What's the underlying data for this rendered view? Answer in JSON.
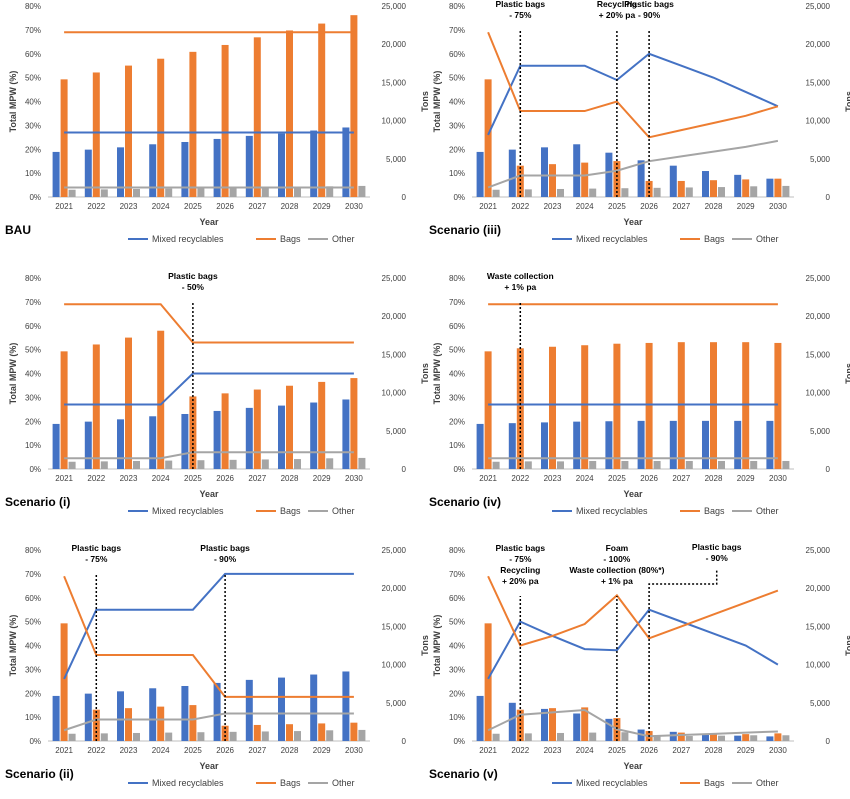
{
  "colors": {
    "mixed": "#4472C4",
    "bags": "#ED7D31",
    "other": "#A5A5A5",
    "axis": "#BFBFBF",
    "text": "#404040",
    "ann": "#000000"
  },
  "chart_data": [
    {
      "type": "bar+line",
      "panel_label": "BAU",
      "categories": [
        "2021",
        "2022",
        "2023",
        "2024",
        "2025",
        "2026",
        "2027",
        "2028",
        "2029",
        "2030"
      ],
      "xlabel": "Year",
      "ylabel_left": "Total MPW (%)",
      "ylabel_right": "Tons",
      "ylim_left": [
        0,
        80
      ],
      "ylim_right": [
        0,
        25000
      ],
      "yticks_left": [
        "0%",
        "10%",
        "20%",
        "30%",
        "40%",
        "50%",
        "60%",
        "70%",
        "80%"
      ],
      "yticks_right": [
        "0",
        "5,000",
        "10,000",
        "15,000",
        "20,000",
        "25,000"
      ],
      "legend": [
        "Mixed recyclables",
        "Bags",
        "Other"
      ],
      "bars": [
        {
          "name": "Mixed recyclables",
          "values": [
            5900,
            6200,
            6500,
            6900,
            7200,
            7600,
            8000,
            8300,
            8700,
            9100
          ]
        },
        {
          "name": "Bags",
          "values": [
            15400,
            16300,
            17200,
            18100,
            19000,
            19900,
            20900,
            21800,
            22700,
            23800
          ]
        },
        {
          "name": "Other",
          "values": [
            950,
            1000,
            1050,
            1100,
            1150,
            1200,
            1250,
            1300,
            1400,
            1450
          ]
        }
      ],
      "lines": [
        {
          "name": "Mixed recyclables",
          "values": [
            27,
            27,
            27,
            27,
            27,
            27,
            27,
            27,
            27,
            27
          ]
        },
        {
          "name": "Bags",
          "values": [
            69,
            69,
            69,
            69,
            69,
            69,
            69,
            69,
            69,
            69
          ]
        },
        {
          "name": "Other",
          "values": [
            4,
            4,
            4,
            4,
            4,
            4,
            4,
            4,
            4,
            4
          ]
        }
      ],
      "annotations": []
    },
    {
      "type": "bar+line",
      "panel_label": "Scenario (iii)",
      "categories": [
        "2021",
        "2022",
        "2023",
        "2024",
        "2025",
        "2026",
        "2027",
        "2028",
        "2029",
        "2030"
      ],
      "xlabel": "Year",
      "ylabel_left": "Total MPW (%)",
      "ylabel_right": "Tons",
      "ylim_left": [
        0,
        80
      ],
      "ylim_right": [
        0,
        25000
      ],
      "yticks_left": [
        "0%",
        "10%",
        "20%",
        "30%",
        "40%",
        "50%",
        "60%",
        "70%",
        "80%"
      ],
      "yticks_right": [
        "0",
        "5,000",
        "10,000",
        "15,000",
        "20,000",
        "25,000"
      ],
      "legend": [
        "Mixed recyclables",
        "Bags",
        "Other"
      ],
      "bars": [
        {
          "name": "Mixed recyclables",
          "values": [
            5900,
            6200,
            6500,
            6900,
            5800,
            4800,
            4100,
            3400,
            2900,
            2400
          ]
        },
        {
          "name": "Bags",
          "values": [
            15400,
            4100,
            4300,
            4500,
            4700,
            2100,
            2100,
            2200,
            2300,
            2400
          ]
        },
        {
          "name": "Other",
          "values": [
            950,
            1000,
            1050,
            1100,
            1150,
            1200,
            1250,
            1300,
            1400,
            1450
          ]
        }
      ],
      "lines": [
        {
          "name": "Mixed recyclables",
          "values": [
            26,
            55,
            55,
            55,
            49,
            60,
            55,
            50,
            44,
            38
          ]
        },
        {
          "name": "Bags",
          "values": [
            69,
            36,
            36,
            36,
            40,
            25,
            28,
            31,
            34,
            38
          ]
        },
        {
          "name": "Other",
          "values": [
            4,
            9,
            9,
            9,
            11,
            15,
            17,
            19,
            21,
            23.5
          ]
        }
      ],
      "annotations": [
        {
          "year": "2022",
          "lines": [
            "Plastic bags",
            "- 75%"
          ]
        },
        {
          "year": "2025",
          "lines": [
            "Recycling",
            "+ 20% pa"
          ]
        },
        {
          "year": "2026",
          "lines": [
            "Plastic bags",
            "- 90%"
          ]
        }
      ]
    },
    {
      "type": "bar+line",
      "panel_label": "Scenario (i)",
      "categories": [
        "2021",
        "2022",
        "2023",
        "2024",
        "2025",
        "2026",
        "2027",
        "2028",
        "2029",
        "2030"
      ],
      "xlabel": "Year",
      "ylabel_left": "Total MPW (%)",
      "ylabel_right": "Tons",
      "ylim_left": [
        0,
        80
      ],
      "ylim_right": [
        0,
        25000
      ],
      "yticks_left": [
        "0%",
        "10%",
        "20%",
        "30%",
        "40%",
        "50%",
        "60%",
        "70%",
        "80%"
      ],
      "yticks_right": [
        "0",
        "5,000",
        "10,000",
        "15,000",
        "20,000",
        "25,000"
      ],
      "legend": [
        "Mixed recyclables",
        "Bags",
        "Other"
      ],
      "bars": [
        {
          "name": "Mixed recyclables",
          "values": [
            5900,
            6200,
            6500,
            6900,
            7200,
            7600,
            8000,
            8300,
            8700,
            9100
          ]
        },
        {
          "name": "Bags",
          "values": [
            15400,
            16300,
            17200,
            18100,
            9500,
            9900,
            10400,
            10900,
            11400,
            11900
          ]
        },
        {
          "name": "Other",
          "values": [
            950,
            1000,
            1050,
            1100,
            1150,
            1200,
            1250,
            1300,
            1400,
            1450
          ]
        }
      ],
      "lines": [
        {
          "name": "Mixed recyclables",
          "values": [
            27,
            27,
            27,
            27,
            40,
            40,
            40,
            40,
            40,
            40
          ]
        },
        {
          "name": "Bags",
          "values": [
            69,
            69,
            69,
            69,
            53,
            53,
            53,
            53,
            53,
            53
          ]
        },
        {
          "name": "Other",
          "values": [
            4.5,
            4.5,
            4.5,
            4.5,
            7,
            7,
            7,
            7,
            7,
            7
          ]
        }
      ],
      "annotations": [
        {
          "year": "2025",
          "lines": [
            "Plastic bags",
            "- 50%"
          ]
        }
      ]
    },
    {
      "type": "bar+line",
      "panel_label": "Scenario (iv)",
      "categories": [
        "2021",
        "2022",
        "2023",
        "2024",
        "2025",
        "2026",
        "2027",
        "2028",
        "2029",
        "2030"
      ],
      "xlabel": "Year",
      "ylabel_left": "Total MPW (%)",
      "ylabel_right": "Tons",
      "ylim_left": [
        0,
        80
      ],
      "ylim_right": [
        0,
        25000
      ],
      "yticks_left": [
        "0%",
        "10%",
        "20%",
        "30%",
        "40%",
        "50%",
        "60%",
        "70%",
        "80%"
      ],
      "yticks_right": [
        "0",
        "5,000",
        "10,000",
        "15,000",
        "20,000",
        "25,000"
      ],
      "legend": [
        "Mixed recyclables",
        "Bags",
        "Other"
      ],
      "bars": [
        {
          "name": "Mixed recyclables",
          "values": [
            5900,
            6000,
            6100,
            6200,
            6250,
            6300,
            6300,
            6300,
            6300,
            6300
          ]
        },
        {
          "name": "Bags",
          "values": [
            15400,
            15800,
            16000,
            16200,
            16400,
            16500,
            16600,
            16600,
            16600,
            16500
          ]
        },
        {
          "name": "Other",
          "values": [
            950,
            1000,
            1000,
            1050,
            1050,
            1050,
            1050,
            1050,
            1050,
            1050
          ]
        }
      ],
      "lines": [
        {
          "name": "Mixed recyclables",
          "values": [
            27,
            27,
            27,
            27,
            27,
            27,
            27,
            27,
            27,
            27
          ]
        },
        {
          "name": "Bags",
          "values": [
            69,
            69,
            69,
            69,
            69,
            69,
            69,
            69,
            69,
            69
          ]
        },
        {
          "name": "Other",
          "values": [
            4.5,
            4.5,
            4.5,
            4.5,
            4.5,
            4.5,
            4.5,
            4.5,
            4.5,
            4.5
          ]
        }
      ],
      "annotations": [
        {
          "year": "2022",
          "lines": [
            "Waste collection",
            "+ 1% pa"
          ]
        }
      ]
    },
    {
      "type": "bar+line",
      "panel_label": "Scenario (ii)",
      "categories": [
        "2021",
        "2022",
        "2023",
        "2024",
        "2025",
        "2026",
        "2027",
        "2028",
        "2029",
        "2030"
      ],
      "xlabel": "Year",
      "ylabel_left": "Total MPW (%)",
      "ylabel_right": "Tons",
      "ylim_left": [
        0,
        80
      ],
      "ylim_right": [
        0,
        25000
      ],
      "yticks_left": [
        "0%",
        "10%",
        "20%",
        "30%",
        "40%",
        "50%",
        "60%",
        "70%",
        "80%"
      ],
      "yticks_right": [
        "0",
        "5,000",
        "10,000",
        "15,000",
        "20,000",
        "25,000"
      ],
      "legend": [
        "Mixed recyclables",
        "Bags",
        "Other"
      ],
      "bars": [
        {
          "name": "Mixed recyclables",
          "values": [
            5900,
            6200,
            6500,
            6900,
            7200,
            7600,
            8000,
            8300,
            8700,
            9100
          ]
        },
        {
          "name": "Bags",
          "values": [
            15400,
            4100,
            4300,
            4500,
            4700,
            2000,
            2100,
            2200,
            2300,
            2400
          ]
        },
        {
          "name": "Other",
          "values": [
            950,
            1000,
            1050,
            1100,
            1150,
            1200,
            1250,
            1300,
            1400,
            1450
          ]
        }
      ],
      "lines": [
        {
          "name": "Mixed recyclables",
          "values": [
            26,
            55,
            55,
            55,
            55,
            70,
            70,
            70,
            70,
            70
          ]
        },
        {
          "name": "Bags",
          "values": [
            69,
            36,
            36,
            36,
            36,
            18.5,
            18.5,
            18.5,
            18.5,
            18.5
          ]
        },
        {
          "name": "Other",
          "values": [
            4.5,
            9,
            9,
            9,
            9,
            11.5,
            11.5,
            11.5,
            11.5,
            11.5
          ]
        }
      ],
      "annotations": [
        {
          "year": "2022",
          "lines": [
            "Plastic bags",
            "- 75%"
          ]
        },
        {
          "year": "2026",
          "lines": [
            "Plastic bags",
            "- 90%"
          ]
        }
      ]
    },
    {
      "type": "bar+line",
      "panel_label": "Scenario (v)",
      "categories": [
        "2021",
        "2022",
        "2023",
        "2024",
        "2025",
        "2026",
        "2027",
        "2028",
        "2029",
        "2030"
      ],
      "xlabel": "Year",
      "ylabel_left": "Total MPW (%)",
      "ylabel_right": "Tons",
      "ylim_left": [
        0,
        80
      ],
      "ylim_right": [
        0,
        25000
      ],
      "yticks_left": [
        "0%",
        "10%",
        "20%",
        "30%",
        "40%",
        "50%",
        "60%",
        "70%",
        "80%"
      ],
      "yticks_right": [
        "0",
        "5,000",
        "10,000",
        "15,000",
        "20,000",
        "25,000"
      ],
      "legend": [
        "Mixed recyclables",
        "Bags",
        "Other"
      ],
      "bars": [
        {
          "name": "Mixed recyclables",
          "values": [
            5900,
            5000,
            4200,
            3600,
            2900,
            1500,
            1200,
            900,
            700,
            600
          ]
        },
        {
          "name": "Bags",
          "values": [
            15400,
            4100,
            4300,
            4400,
            3000,
            1300,
            1100,
            900,
            900,
            1000
          ]
        },
        {
          "name": "Other",
          "values": [
            950,
            1000,
            1050,
            1100,
            1150,
            600,
            650,
            700,
            750,
            750
          ]
        }
      ],
      "lines": [
        {
          "name": "Mixed recyclables",
          "values": [
            26,
            50,
            44,
            38.5,
            38,
            55,
            50,
            45,
            40,
            32
          ]
        },
        {
          "name": "Bags",
          "values": [
            69,
            40,
            44,
            49,
            61,
            43,
            48,
            53,
            58,
            63
          ]
        },
        {
          "name": "Other",
          "values": [
            4.5,
            11,
            12,
            13,
            5,
            2,
            2.5,
            3,
            3.5,
            4
          ]
        }
      ],
      "annotations": [
        {
          "year": "2022",
          "lines": [
            "Plastic bags",
            "- 75%",
            "Recycling",
            "+ 20% pa"
          ]
        },
        {
          "year": "2025",
          "lines": [
            "Foam",
            "- 100%",
            "Waste collection (80%*)",
            "+ 1% pa"
          ]
        },
        {
          "year": "2026",
          "lines": [
            "Plastic bags",
            "- 90%"
          ],
          "offset_year": "2028"
        }
      ]
    }
  ]
}
